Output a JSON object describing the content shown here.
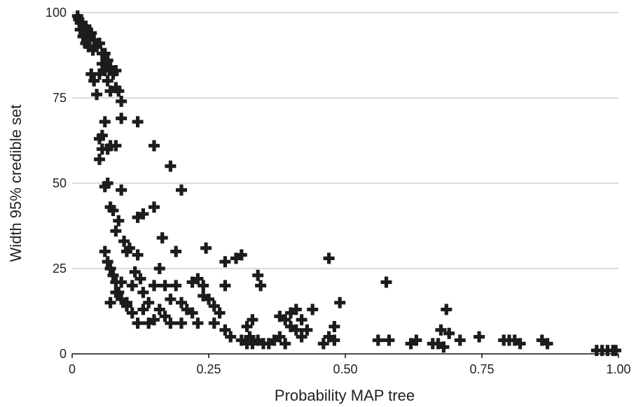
{
  "chart_data": {
    "type": "scatter",
    "xlabel": "Probability MAP tree",
    "ylabel": "Width 95% credible set",
    "xlim": [
      0,
      1
    ],
    "ylim": [
      0,
      100
    ],
    "xticks": [
      "0",
      "0.25",
      "0.50",
      "0.75",
      "1.00"
    ],
    "yticks": [
      "0",
      "25",
      "50",
      "75",
      "100"
    ],
    "grid": "horizontal",
    "marker": "plus",
    "color": "#1c1c1c",
    "points": [
      [
        0.01,
        99
      ],
      [
        0.012,
        98
      ],
      [
        0.015,
        97
      ],
      [
        0.018,
        97
      ],
      [
        0.02,
        96
      ],
      [
        0.022,
        95
      ],
      [
        0.025,
        96
      ],
      [
        0.028,
        94
      ],
      [
        0.03,
        93
      ],
      [
        0.032,
        92
      ],
      [
        0.015,
        95
      ],
      [
        0.02,
        93
      ],
      [
        0.025,
        91
      ],
      [
        0.03,
        90
      ],
      [
        0.035,
        94
      ],
      [
        0.038,
        89
      ],
      [
        0.04,
        92
      ],
      [
        0.045,
        90
      ],
      [
        0.05,
        91
      ],
      [
        0.055,
        88
      ],
      [
        0.06,
        88
      ],
      [
        0.065,
        86
      ],
      [
        0.07,
        84
      ],
      [
        0.075,
        82
      ],
      [
        0.08,
        83
      ],
      [
        0.035,
        82
      ],
      [
        0.04,
        80
      ],
      [
        0.05,
        82
      ],
      [
        0.055,
        85
      ],
      [
        0.06,
        83
      ],
      [
        0.065,
        80
      ],
      [
        0.07,
        77
      ],
      [
        0.08,
        78
      ],
      [
        0.085,
        77
      ],
      [
        0.09,
        74
      ],
      [
        0.045,
        76
      ],
      [
        0.05,
        63
      ],
      [
        0.055,
        64
      ],
      [
        0.06,
        68
      ],
      [
        0.065,
        60
      ],
      [
        0.07,
        61
      ],
      [
        0.08,
        61
      ],
      [
        0.09,
        69
      ],
      [
        0.05,
        57
      ],
      [
        0.055,
        60
      ],
      [
        0.06,
        49
      ],
      [
        0.065,
        50
      ],
      [
        0.07,
        43
      ],
      [
        0.075,
        42
      ],
      [
        0.08,
        36
      ],
      [
        0.085,
        39
      ],
      [
        0.09,
        48
      ],
      [
        0.095,
        33
      ],
      [
        0.1,
        30
      ],
      [
        0.105,
        31
      ],
      [
        0.12,
        40
      ],
      [
        0.13,
        41
      ],
      [
        0.12,
        68
      ],
      [
        0.15,
        61
      ],
      [
        0.18,
        55
      ],
      [
        0.2,
        48
      ],
      [
        0.15,
        43
      ],
      [
        0.165,
        34
      ],
      [
        0.19,
        30
      ],
      [
        0.245,
        31
      ],
      [
        0.06,
        30
      ],
      [
        0.065,
        27
      ],
      [
        0.07,
        25
      ],
      [
        0.075,
        23
      ],
      [
        0.08,
        21
      ],
      [
        0.085,
        18
      ],
      [
        0.09,
        16
      ],
      [
        0.1,
        15
      ],
      [
        0.11,
        20
      ],
      [
        0.115,
        24
      ],
      [
        0.12,
        29
      ],
      [
        0.125,
        22
      ],
      [
        0.13,
        18
      ],
      [
        0.14,
        15
      ],
      [
        0.15,
        20
      ],
      [
        0.16,
        25
      ],
      [
        0.17,
        20
      ],
      [
        0.18,
        16
      ],
      [
        0.19,
        20
      ],
      [
        0.2,
        15
      ],
      [
        0.21,
        13
      ],
      [
        0.22,
        21
      ],
      [
        0.23,
        22
      ],
      [
        0.24,
        20
      ],
      [
        0.25,
        16
      ],
      [
        0.26,
        14
      ],
      [
        0.27,
        12
      ],
      [
        0.28,
        20
      ],
      [
        0.07,
        15
      ],
      [
        0.08,
        18
      ],
      [
        0.09,
        21
      ],
      [
        0.1,
        14
      ],
      [
        0.11,
        12
      ],
      [
        0.12,
        9
      ],
      [
        0.13,
        13
      ],
      [
        0.14,
        9
      ],
      [
        0.15,
        10
      ],
      [
        0.16,
        13
      ],
      [
        0.17,
        11
      ],
      [
        0.18,
        9
      ],
      [
        0.2,
        9
      ],
      [
        0.22,
        12
      ],
      [
        0.23,
        9
      ],
      [
        0.24,
        17
      ],
      [
        0.26,
        9
      ],
      [
        0.28,
        27
      ],
      [
        0.3,
        28
      ],
      [
        0.31,
        29
      ],
      [
        0.28,
        7
      ],
      [
        0.29,
        5
      ],
      [
        0.31,
        4
      ],
      [
        0.32,
        3
      ],
      [
        0.33,
        3
      ],
      [
        0.34,
        4
      ],
      [
        0.35,
        3
      ],
      [
        0.32,
        8
      ],
      [
        0.33,
        10
      ],
      [
        0.325,
        5
      ],
      [
        0.34,
        23
      ],
      [
        0.345,
        20
      ],
      [
        0.36,
        3
      ],
      [
        0.37,
        4
      ],
      [
        0.38,
        5
      ],
      [
        0.39,
        3
      ],
      [
        0.38,
        11
      ],
      [
        0.39,
        10
      ],
      [
        0.4,
        12
      ],
      [
        0.41,
        13
      ],
      [
        0.42,
        10
      ],
      [
        0.4,
        8
      ],
      [
        0.41,
        7
      ],
      [
        0.42,
        5
      ],
      [
        0.43,
        7
      ],
      [
        0.44,
        13
      ],
      [
        0.46,
        3
      ],
      [
        0.47,
        5
      ],
      [
        0.48,
        8
      ],
      [
        0.48,
        4
      ],
      [
        0.49,
        15
      ],
      [
        0.47,
        28
      ],
      [
        0.56,
        4
      ],
      [
        0.58,
        4
      ],
      [
        0.575,
        21
      ],
      [
        0.62,
        3
      ],
      [
        0.63,
        4
      ],
      [
        0.66,
        3
      ],
      [
        0.67,
        3
      ],
      [
        0.68,
        2
      ],
      [
        0.675,
        7
      ],
      [
        0.685,
        13
      ],
      [
        0.69,
        6
      ],
      [
        0.71,
        4
      ],
      [
        0.745,
        5
      ],
      [
        0.79,
        4
      ],
      [
        0.8,
        4
      ],
      [
        0.81,
        4
      ],
      [
        0.82,
        3
      ],
      [
        0.86,
        4
      ],
      [
        0.87,
        3
      ],
      [
        0.96,
        1
      ],
      [
        0.97,
        1
      ],
      [
        0.98,
        1
      ],
      [
        0.99,
        1
      ],
      [
        0.995,
        1
      ]
    ]
  }
}
